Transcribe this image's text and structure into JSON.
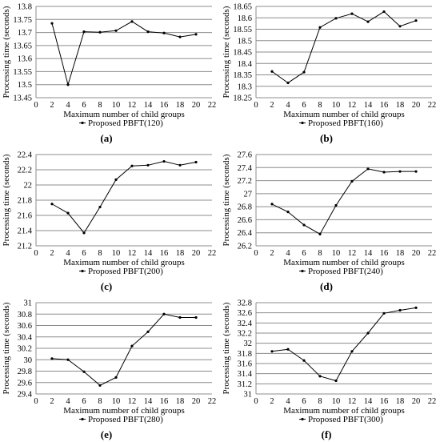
{
  "chart_data": [
    {
      "type": "line",
      "panel": "a",
      "xlabel": "Maximum number of child groups",
      "ylabel": "Processing time (seconds)",
      "legend": "Proposed PBFT(120)",
      "xlim": [
        0,
        22
      ],
      "xticks": [
        0,
        2,
        4,
        6,
        8,
        10,
        12,
        14,
        16,
        18,
        20,
        22
      ],
      "ylim": [
        13.45,
        13.8
      ],
      "yticks": [
        13.45,
        13.5,
        13.55,
        13.6,
        13.65,
        13.7,
        13.75,
        13.8
      ],
      "ytick_labels": [
        "13.45",
        "13.5",
        "13.55",
        "13.6",
        "13.65",
        "13.7",
        "13.75",
        "13.8"
      ],
      "x": [
        2,
        4,
        6,
        8,
        10,
        12,
        14,
        16,
        18,
        20
      ],
      "values": [
        13.735,
        13.5,
        13.703,
        13.701,
        13.707,
        13.742,
        13.703,
        13.698,
        13.683,
        13.693
      ]
    },
    {
      "type": "line",
      "panel": "b",
      "xlabel": "Maximum number of child groups",
      "ylabel": "Processing time (seconds)",
      "legend": "Proposed PBFT(160)",
      "xlim": [
        0,
        22
      ],
      "xticks": [
        0,
        2,
        4,
        6,
        8,
        10,
        12,
        14,
        16,
        18,
        20,
        22
      ],
      "ylim": [
        18.25,
        18.65
      ],
      "yticks": [
        18.25,
        18.3,
        18.35,
        18.4,
        18.45,
        18.5,
        18.55,
        18.6,
        18.65
      ],
      "ytick_labels": [
        "18.25",
        "18.3",
        "18.35",
        "18.4",
        "18.45",
        "18.5",
        "18.55",
        "18.6",
        "18.65"
      ],
      "x": [
        2,
        4,
        6,
        8,
        10,
        12,
        14,
        16,
        18,
        20
      ],
      "values": [
        18.365,
        18.315,
        18.362,
        18.558,
        18.598,
        18.618,
        18.583,
        18.627,
        18.563,
        18.588
      ]
    },
    {
      "type": "line",
      "panel": "c",
      "xlabel": "Maximum number of child groups",
      "ylabel": "Processing time (seconds)",
      "legend": "Proposed PBFT(200)",
      "xlim": [
        0,
        22
      ],
      "xticks": [
        0,
        2,
        4,
        6,
        8,
        10,
        12,
        14,
        16,
        18,
        20,
        22
      ],
      "ylim": [
        21.2,
        22.4
      ],
      "yticks": [
        21.2,
        21.4,
        21.6,
        21.8,
        22,
        22.2,
        22.4
      ],
      "ytick_labels": [
        "21.2",
        "21.4",
        "21.6",
        "21.8",
        "22",
        "22.2",
        "22.4"
      ],
      "x": [
        2,
        4,
        6,
        8,
        10,
        12,
        14,
        16,
        18,
        20
      ],
      "values": [
        21.75,
        21.63,
        21.37,
        21.71,
        22.07,
        22.25,
        22.26,
        22.31,
        22.26,
        22.3
      ]
    },
    {
      "type": "line",
      "panel": "d",
      "xlabel": "Maximum number of child groups",
      "ylabel": "Processing time (seconds)",
      "legend": "Proposed PBFT(240)",
      "xlim": [
        0,
        22
      ],
      "xticks": [
        0,
        2,
        4,
        6,
        8,
        10,
        12,
        14,
        16,
        18,
        20,
        22
      ],
      "ylim": [
        26.2,
        27.6
      ],
      "yticks": [
        26.2,
        26.4,
        26.6,
        26.8,
        27,
        27.2,
        27.4,
        27.6
      ],
      "ytick_labels": [
        "26.2",
        "26.4",
        "26.6",
        "26.8",
        "27",
        "27.2",
        "27.4",
        "27.6"
      ],
      "x": [
        2,
        4,
        6,
        8,
        10,
        12,
        14,
        16,
        18,
        20
      ],
      "values": [
        26.84,
        26.72,
        26.52,
        26.38,
        26.82,
        27.19,
        27.38,
        27.33,
        27.34,
        27.34
      ]
    },
    {
      "type": "line",
      "panel": "e",
      "xlabel": "Maximum number of child groups",
      "ylabel": "Processing time (seconds)",
      "legend": "Proposed PBFT(280)",
      "xlim": [
        0,
        22
      ],
      "xticks": [
        0,
        2,
        4,
        6,
        8,
        10,
        12,
        14,
        16,
        18,
        20,
        22
      ],
      "ylim": [
        29.4,
        31
      ],
      "yticks": [
        29.4,
        29.6,
        29.8,
        30,
        30.2,
        30.4,
        30.6,
        30.8,
        31
      ],
      "ytick_labels": [
        "29.4",
        "29.6",
        "29.8",
        "30",
        "30.2",
        "30.4",
        "30.6",
        "30.8",
        "31"
      ],
      "x": [
        2,
        4,
        6,
        8,
        10,
        12,
        14,
        16,
        18,
        20
      ],
      "values": [
        30.02,
        30.0,
        29.79,
        29.55,
        29.69,
        30.24,
        30.49,
        30.8,
        30.74,
        30.74
      ]
    },
    {
      "type": "line",
      "panel": "f",
      "xlabel": "Maximum number of child groups",
      "ylabel": "Processing time (seconds)",
      "legend": "Proposed PBFT(300)",
      "xlim": [
        0,
        22
      ],
      "xticks": [
        0,
        2,
        4,
        6,
        8,
        10,
        12,
        14,
        16,
        18,
        20,
        22
      ],
      "ylim": [
        31,
        32.8
      ],
      "yticks": [
        31,
        31.2,
        31.4,
        31.6,
        31.8,
        32,
        32.2,
        32.4,
        32.6,
        32.8
      ],
      "ytick_labels": [
        "31",
        "31.2",
        "31.4",
        "31.6",
        "31.8",
        "32",
        "32.2",
        "32.4",
        "32.6",
        "32.8"
      ],
      "x": [
        2,
        4,
        6,
        8,
        10,
        12,
        14,
        16,
        18,
        20
      ],
      "values": [
        31.84,
        31.88,
        31.66,
        31.35,
        31.26,
        31.84,
        32.2,
        32.59,
        32.65,
        32.7
      ]
    }
  ],
  "panel_labels": [
    "(a)",
    "(b)",
    "(c)",
    "(d)",
    "(e)",
    "(f)"
  ]
}
